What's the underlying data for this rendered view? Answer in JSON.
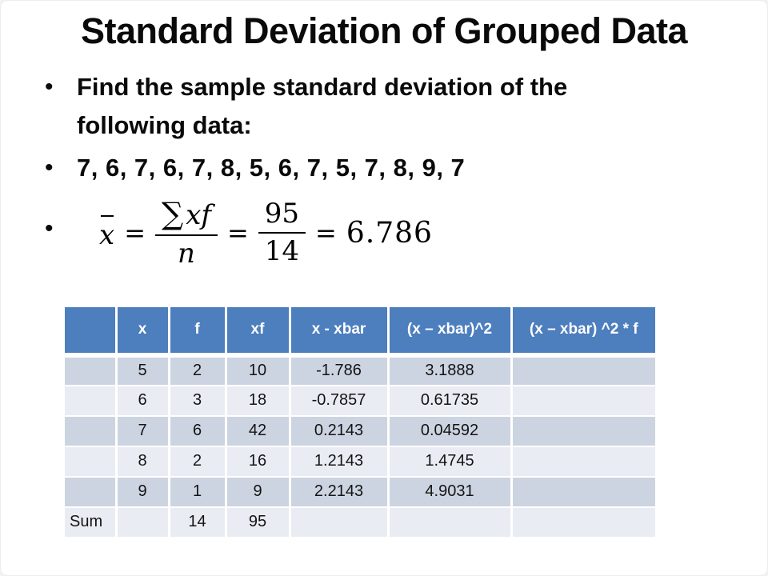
{
  "title": "Standard Deviation of Grouped Data",
  "bullets": {
    "glyph": "•",
    "find_text": "Find the sample standard deviation of the following data:",
    "data_values": "7, 6, 7, 6, 7, 8, 5, 6, 7, 5, 7, 8, 9, 7"
  },
  "formula": {
    "xbar_var": "x",
    "eq": "=",
    "sigma": "∑",
    "num1_var": "xf",
    "den1_var": "n",
    "num2": "95",
    "den2": "14",
    "result": "6.786"
  },
  "table": {
    "columns": [
      "",
      "x",
      "f",
      "xf",
      "x - xbar",
      "(x – xbar)^2",
      "(x – xbar) ^2 * f"
    ],
    "rows": [
      [
        "",
        "5",
        "2",
        "10",
        "-1.786",
        "3.1888",
        ""
      ],
      [
        "",
        "6",
        "3",
        "18",
        "-0.7857",
        "0.61735",
        ""
      ],
      [
        "",
        "7",
        "6",
        "42",
        "0.2143",
        "0.04592",
        ""
      ],
      [
        "",
        "8",
        "2",
        "16",
        "1.2143",
        "1.4745",
        ""
      ],
      [
        "",
        "9",
        "1",
        "9",
        "2.2143",
        "4.9031",
        ""
      ],
      [
        "Sum",
        "",
        "14",
        "95",
        "",
        "",
        ""
      ]
    ],
    "colors": {
      "header_bg": "#4d7ebd",
      "header_text": "#ffffff",
      "row_dark": "#cdd4e1",
      "row_light": "#e9edf3"
    }
  }
}
